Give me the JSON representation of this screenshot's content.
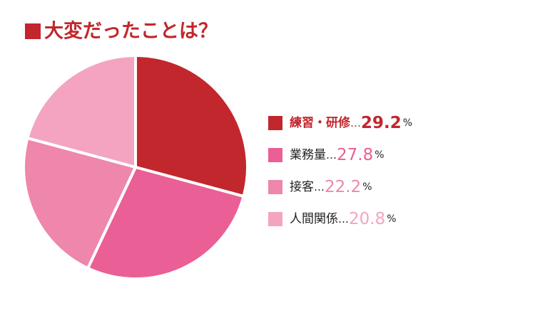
{
  "chart_data": {
    "type": "pie",
    "title": "大変だったことは？",
    "categories": [
      "練習・研修",
      "業務量",
      "接客",
      "人間関係"
    ],
    "values": [
      29.2,
      27.8,
      22.2,
      20.8
    ],
    "colors": [
      "#c1272d",
      "#ea5f95",
      "#ef86ab",
      "#f4a4c0"
    ],
    "separator": "…",
    "unit": "%"
  }
}
